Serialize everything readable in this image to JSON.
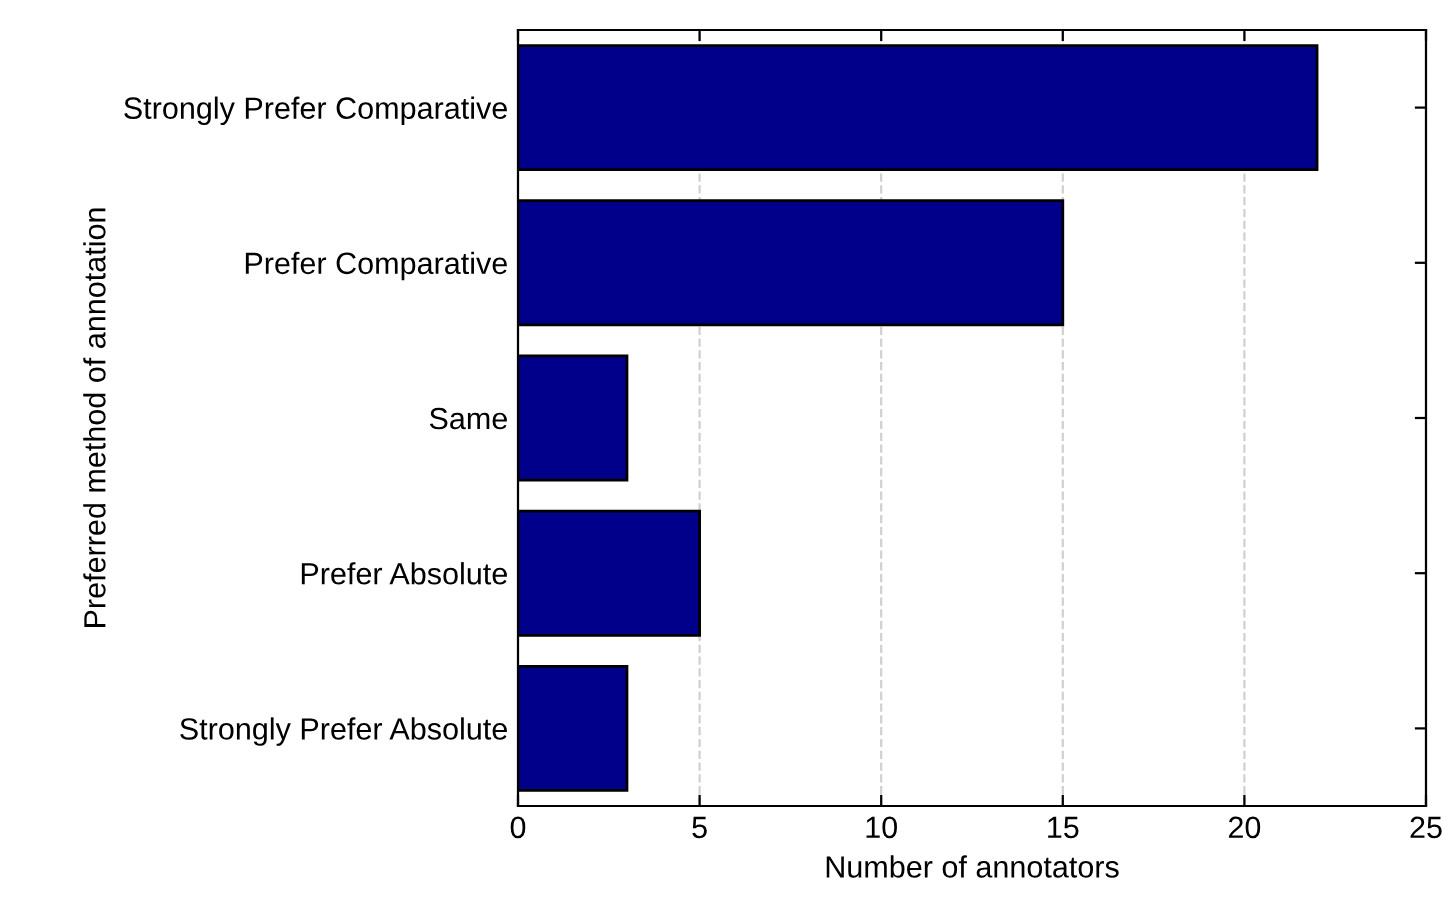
{
  "chart_data": {
    "type": "bar",
    "orientation": "horizontal",
    "categories": [
      "Strongly Prefer Comparative",
      "Prefer Comparative",
      "Same",
      "Prefer Absolute",
      "Strongly Prefer Absolute"
    ],
    "values": [
      22,
      15,
      3,
      5,
      3
    ],
    "color": "#00008b",
    "xlim": [
      0,
      25
    ],
    "xticks": [
      0,
      5,
      10,
      15,
      20,
      25
    ],
    "xlabel": "Number of annotators",
    "ylabel": "Preferred method of annotation",
    "grid": "x"
  }
}
